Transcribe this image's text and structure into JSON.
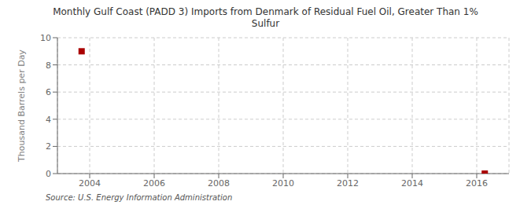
{
  "chart_data": {
    "type": "scatter",
    "title": "Monthly Gulf Coast (PADD 3) Imports from Denmark of Residual Fuel Oil, Greater Than 1%\nSulfur",
    "ylabel": "Thousand Barrels per Day",
    "source": "Source: U.S. Energy Information Administration",
    "x": [
      2003.75,
      2016.25
    ],
    "values": [
      9.0,
      0.0
    ],
    "color": "#aa0000",
    "marker": "square",
    "xlim": [
      2003.0,
      2017.0
    ],
    "ylim": [
      0,
      10
    ],
    "xticks": [
      2004,
      2006,
      2008,
      2010,
      2012,
      2014,
      2016
    ],
    "yticks": [
      0,
      2,
      4,
      6,
      8,
      10
    ],
    "grid": true
  }
}
